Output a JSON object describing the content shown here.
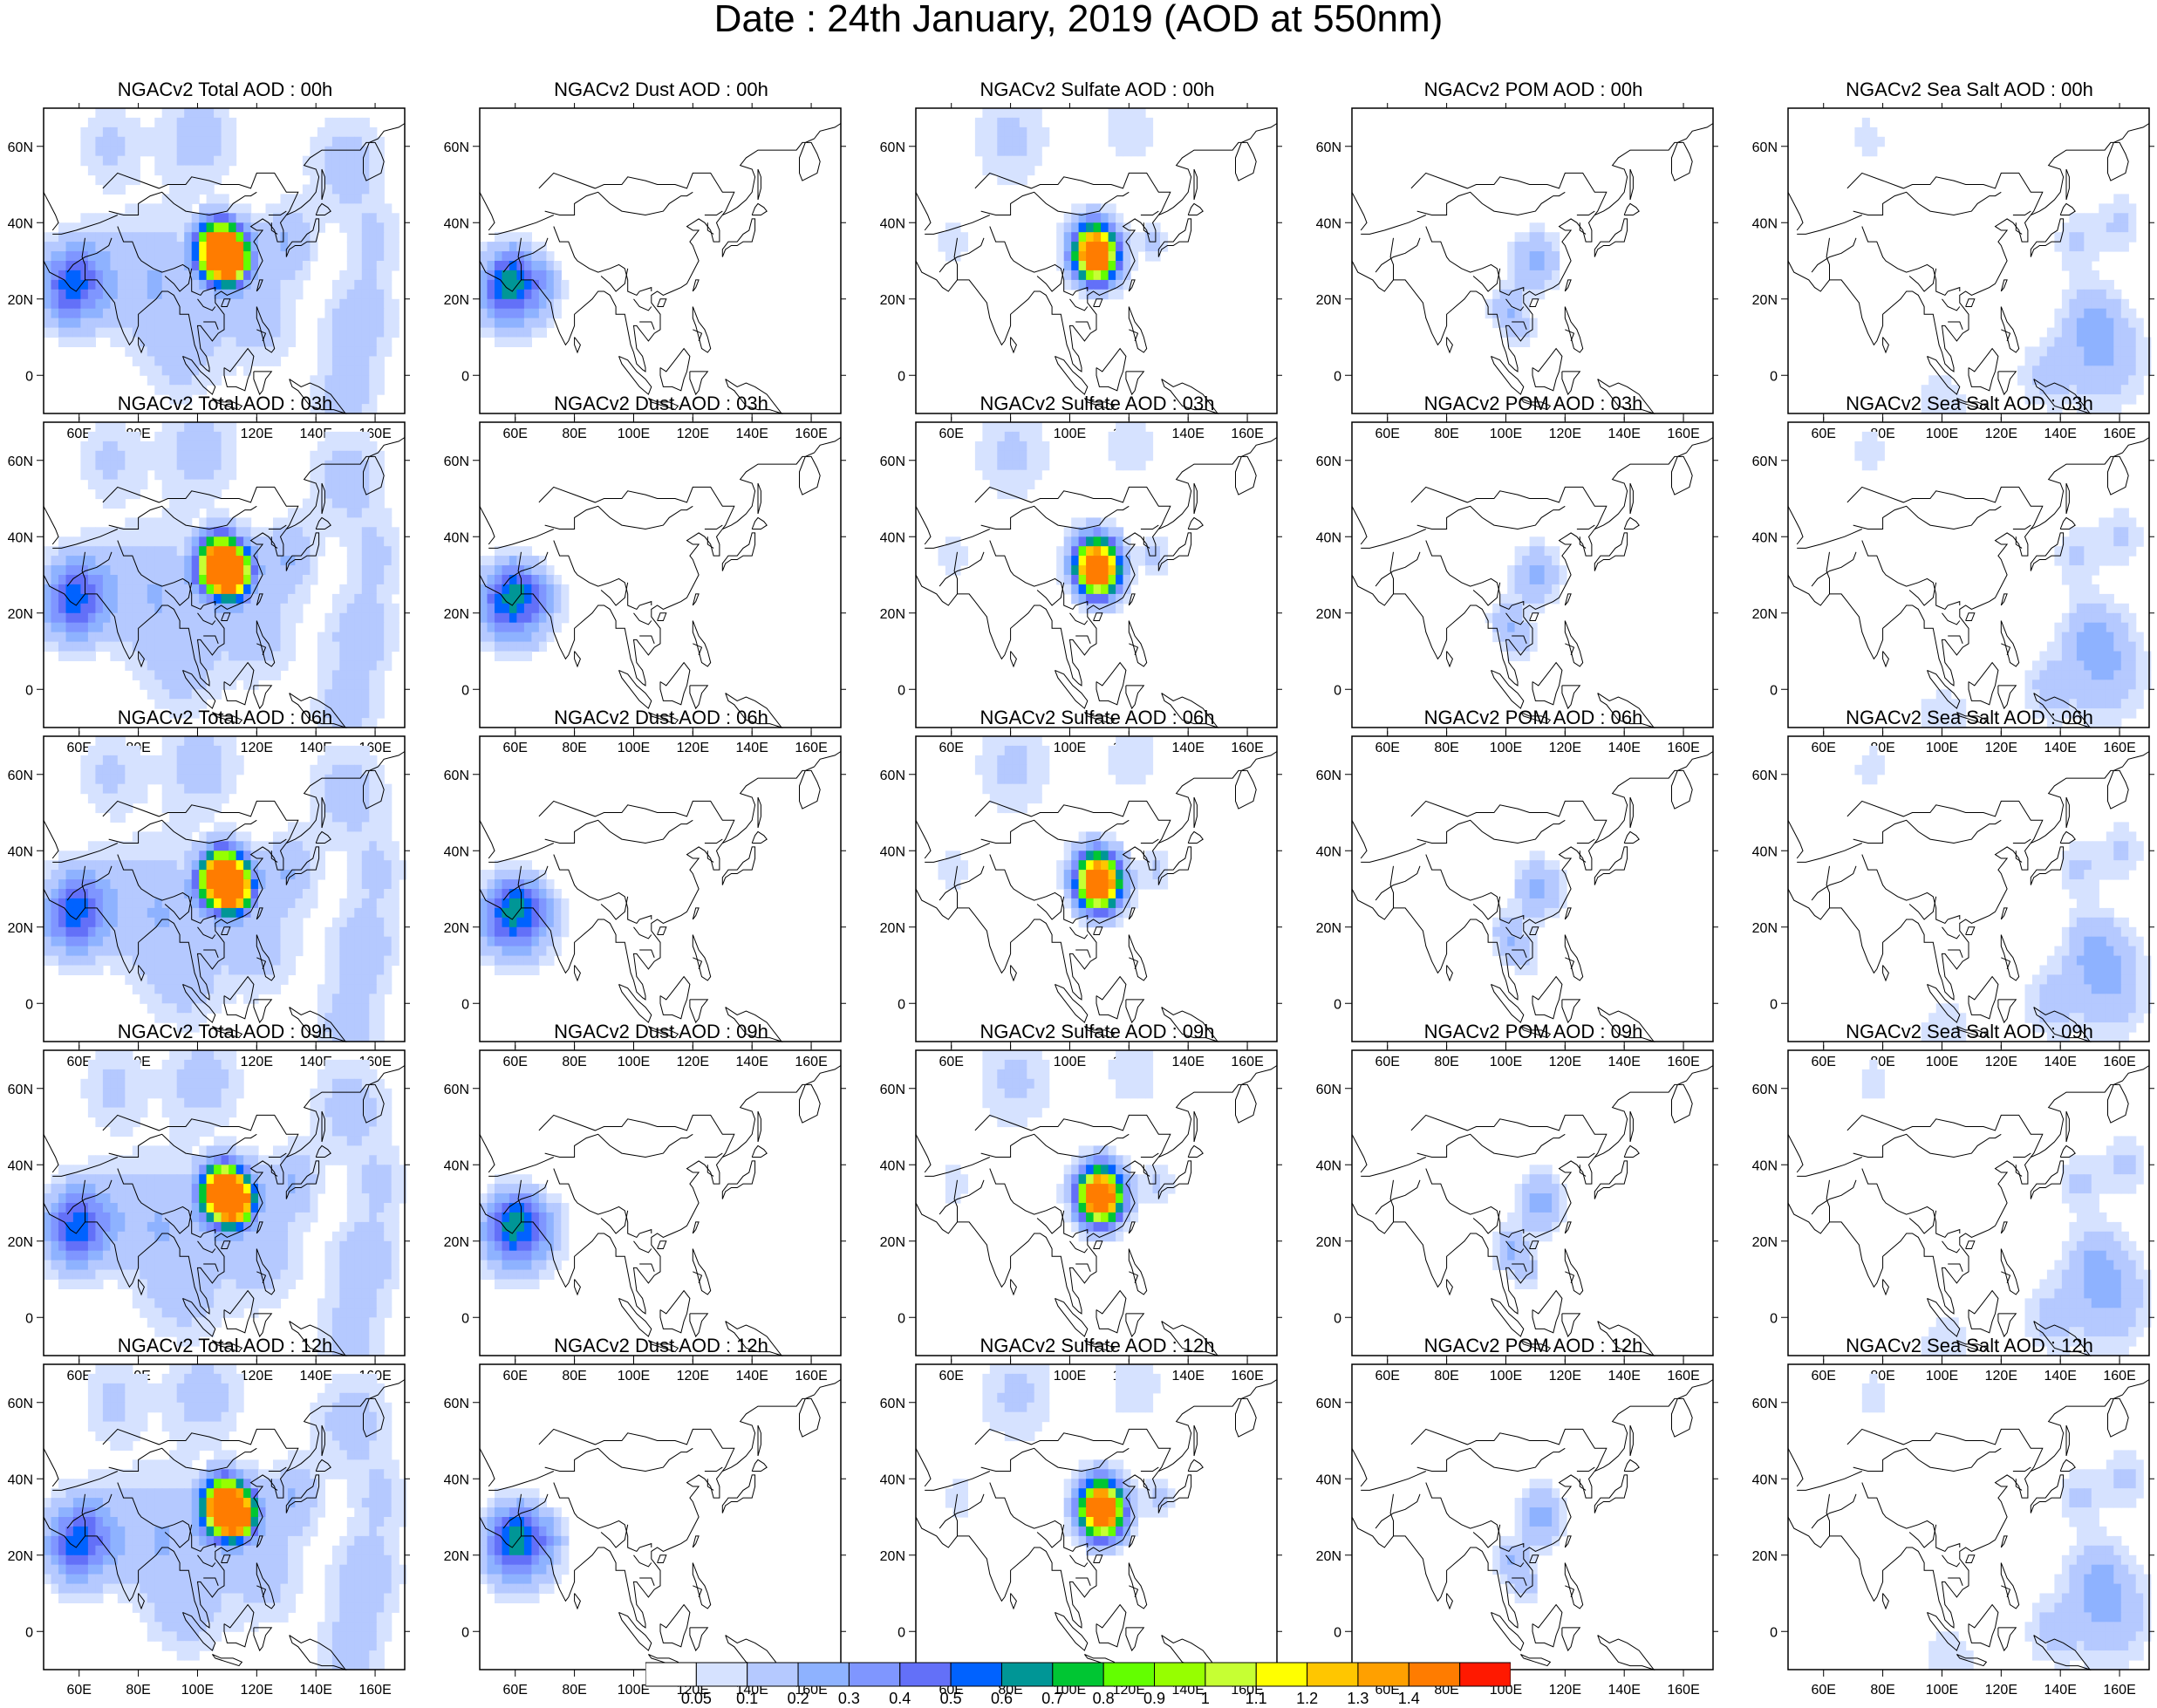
{
  "title": "Date : 24th January, 2019 (AOD at 550nm)",
  "axes": {
    "lon_ticks": [
      "60E",
      "80E",
      "100E",
      "120E",
      "140E",
      "160E"
    ],
    "lon_values": [
      60,
      80,
      100,
      120,
      140,
      160
    ],
    "lat_ticks": [
      "60N",
      "40N",
      "20N",
      "0"
    ],
    "lat_values": [
      60,
      40,
      20,
      0
    ],
    "lon_range": [
      48,
      170
    ],
    "lat_range": [
      -10,
      70
    ]
  },
  "panels": [
    {
      "title": "NGACv2 Total AOD : 00h",
      "species": "total",
      "hour": "00h"
    },
    {
      "title": "NGACv2 Dust AOD : 00h",
      "species": "dust",
      "hour": "00h"
    },
    {
      "title": "NGACv2 Sulfate AOD : 00h",
      "species": "sulfate",
      "hour": "00h"
    },
    {
      "title": "NGACv2 POM AOD : 00h",
      "species": "pom",
      "hour": "00h"
    },
    {
      "title": "NGACv2 Sea Salt AOD : 00h",
      "species": "seasalt",
      "hour": "00h"
    },
    {
      "title": "NGACv2 Total AOD : 03h",
      "species": "total",
      "hour": "03h"
    },
    {
      "title": "NGACv2 Dust AOD : 03h",
      "species": "dust",
      "hour": "03h"
    },
    {
      "title": "NGACv2 Sulfate AOD : 03h",
      "species": "sulfate",
      "hour": "03h"
    },
    {
      "title": "NGACv2 POM AOD : 03h",
      "species": "pom",
      "hour": "03h"
    },
    {
      "title": "NGACv2 Sea Salt AOD : 03h",
      "species": "seasalt",
      "hour": "03h"
    },
    {
      "title": "NGACv2 Total AOD : 06h",
      "species": "total",
      "hour": "06h"
    },
    {
      "title": "NGACv2 Dust AOD : 06h",
      "species": "dust",
      "hour": "06h"
    },
    {
      "title": "NGACv2 Sulfate AOD : 06h",
      "species": "sulfate",
      "hour": "06h"
    },
    {
      "title": "NGACv2 POM AOD : 06h",
      "species": "pom",
      "hour": "06h"
    },
    {
      "title": "NGACv2 Sea Salt AOD : 06h",
      "species": "seasalt",
      "hour": "06h"
    },
    {
      "title": "NGACv2 Total AOD : 09h",
      "species": "total",
      "hour": "09h"
    },
    {
      "title": "NGACv2 Dust AOD : 09h",
      "species": "dust",
      "hour": "09h"
    },
    {
      "title": "NGACv2 Sulfate AOD : 09h",
      "species": "sulfate",
      "hour": "09h"
    },
    {
      "title": "NGACv2 POM AOD : 09h",
      "species": "pom",
      "hour": "09h"
    },
    {
      "title": "NGACv2 Sea Salt  AOD : 09h",
      "species": "seasalt",
      "hour": "09h"
    },
    {
      "title": "NGACv2 Total AOD  : 12h",
      "species": "total",
      "hour": "12h"
    },
    {
      "title": "NGACv2 Dust AOD : 12h",
      "species": "dust",
      "hour": "12h"
    },
    {
      "title": "NGACv2 Sulfate AOD : 12h",
      "species": "sulfate",
      "hour": "12h"
    },
    {
      "title": "NGACv2 POM  AOD : 12h",
      "species": "pom",
      "hour": "12h"
    },
    {
      "title": "NGACv2 Sea Salt  AOD : 12h",
      "species": "seasalt",
      "hour": "12h"
    }
  ],
  "colorbar": {
    "labels": [
      "0.05",
      "0.1",
      "0.2",
      "0.3",
      "0.4",
      "0.5",
      "0.6",
      "0.7",
      "0.8",
      "0.9",
      "1",
      "1.1",
      "1.2",
      "1.3",
      "1.4"
    ],
    "colors": [
      "#ffffff",
      "#d6e2ff",
      "#b5c9ff",
      "#8eb2ff",
      "#7f96ff",
      "#6370f8",
      "#0062ff",
      "#009696",
      "#00c633",
      "#63ff00",
      "#96ff00",
      "#c6ff33",
      "#ffff00",
      "#ffc600",
      "#ffa000",
      "#ff7c00",
      "#ff1900"
    ]
  }
}
